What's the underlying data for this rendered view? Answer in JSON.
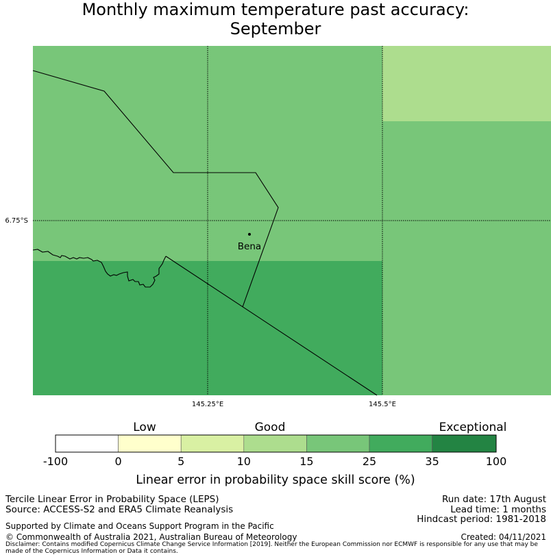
{
  "title": {
    "line1": "Monthly maximum temperature past accuracy:",
    "line2": "September"
  },
  "map": {
    "lon_labels": [
      "145.25°E",
      "145.5°E"
    ],
    "lat_labels": [
      "6.75°S"
    ],
    "place": {
      "name": "Bena"
    }
  },
  "legend": {
    "categories": [
      "Low",
      "Good",
      "Exceptional"
    ],
    "ticks": [
      "-100",
      "0",
      "5",
      "10",
      "15",
      "25",
      "35",
      "100"
    ],
    "title": "Linear error in probability space skill score (%)"
  },
  "colors": {
    "band_neg100_0": "#ffffff",
    "band_0_5": "#ffffcc",
    "band_5_10": "#d9f0a3",
    "band_10_15": "#addd8e",
    "band_15_25": "#78c679",
    "band_25_35": "#41ab5d",
    "band_35_100": "#238443"
  },
  "footer": {
    "left1": "Tercile Linear Error in Probability Space (LEPS)",
    "left2": "Source: ACCESS-S2 and ERA5 Climate Reanalysis",
    "support": "Supported by Climate and Oceans Support Program in the Pacific",
    "copyright": "© Commonwealth of Australia 2021, Australian Bureau of Meteorology",
    "run_date": "Run date: 17th August",
    "lead_time": "Lead time: 1 months",
    "hindcast": "Hindcast period: 1981-2018",
    "created": "Created: 04/11/2021",
    "disclaimer": "Disclaimer: Contains modified Copernicus Climate Change Service Information [2019]. Neither the European Commission nor ECMWF is responsible for any use that may be made of the Copernicus Information or Data it contains."
  }
}
